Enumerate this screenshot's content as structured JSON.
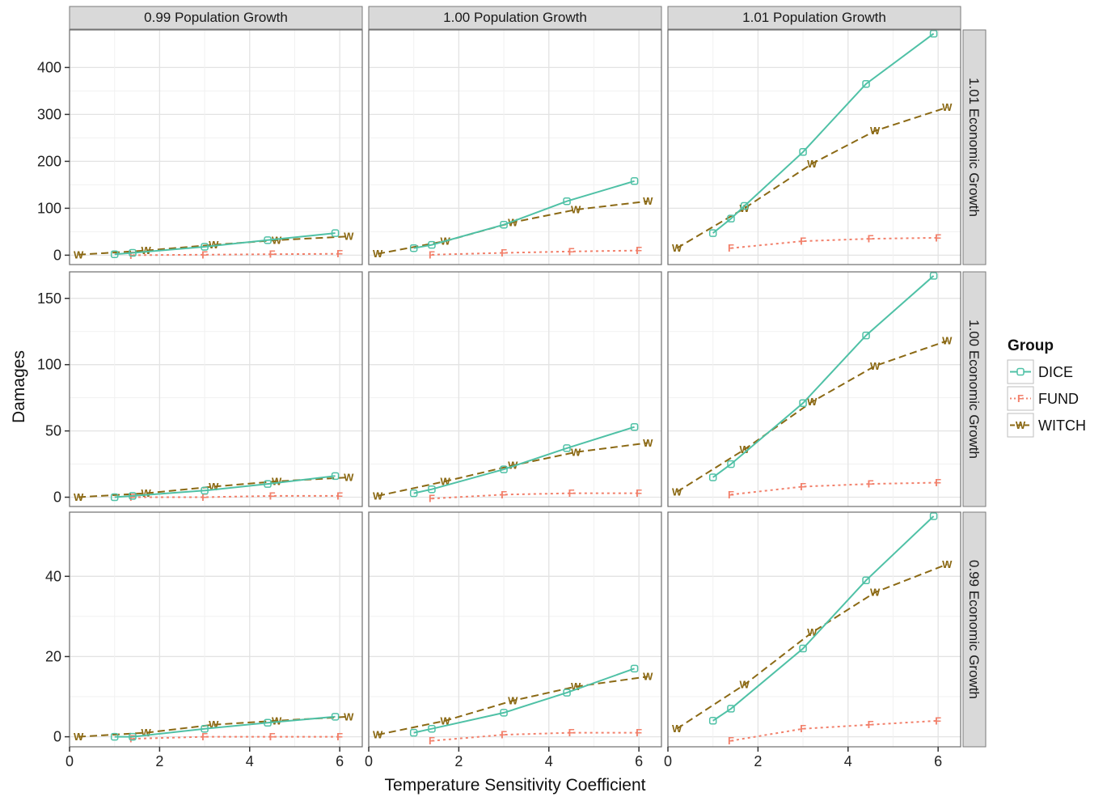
{
  "chart_data": {
    "type": "line",
    "title": "",
    "xlabel": "Temperature Sensitivity Coefficient",
    "ylabel": "Damages",
    "xlim": [
      0,
      6.5
    ],
    "x_ticks": [
      0,
      2,
      4,
      6
    ],
    "column_labels": [
      "0.99 Population Growth",
      "1.00 Population Growth",
      "1.01 Population Growth"
    ],
    "row_labels": [
      "1.01 Economic Growth",
      "1.00 Economic Growth",
      "0.99 Economic Growth"
    ],
    "row_ylim": [
      [
        -20,
        480
      ],
      [
        -7,
        170
      ],
      [
        -2.5,
        56
      ]
    ],
    "row_y_ticks": [
      [
        0,
        100,
        200,
        300,
        400
      ],
      [
        0,
        50,
        100,
        150
      ],
      [
        0,
        20,
        40
      ]
    ],
    "legend": {
      "title": "Group",
      "position": "right",
      "entries": [
        {
          "name": "DICE",
          "color": "#4fc1a6",
          "marker": "D",
          "dash": "solid"
        },
        {
          "name": "FUND",
          "color": "#f2806b",
          "marker": "F",
          "dash": "dotted"
        },
        {
          "name": "WITCH",
          "color": "#8b6914",
          "marker": "W",
          "dash": "dashed"
        }
      ]
    },
    "panels": [
      {
        "row": "1.01 Economic Growth",
        "column": "0.99 Population Growth",
        "series": [
          {
            "name": "DICE",
            "x": [
              1,
              1.4,
              3,
              4.4,
              5.9
            ],
            "y": [
              2,
              5,
              18,
              32,
              47
            ]
          },
          {
            "name": "FUND",
            "x": [
              1.4,
              3,
              4.5,
              6
            ],
            "y": [
              0,
              1,
              2,
              3
            ]
          },
          {
            "name": "WITCH",
            "x": [
              0.2,
              1.7,
              3.2,
              4.6,
              6.2
            ],
            "y": [
              1,
              10,
              22,
              32,
              40
            ]
          }
        ]
      },
      {
        "row": "1.01 Economic Growth",
        "column": "1.00 Population Growth",
        "series": [
          {
            "name": "DICE",
            "x": [
              1,
              1.4,
              3,
              4.4,
              5.9
            ],
            "y": [
              15,
              22,
              65,
              115,
              158
            ]
          },
          {
            "name": "FUND",
            "x": [
              1.4,
              3,
              4.5,
              6
            ],
            "y": [
              1,
              5,
              8,
              10
            ]
          },
          {
            "name": "WITCH",
            "x": [
              0.2,
              1.7,
              3.2,
              4.6,
              6.2
            ],
            "y": [
              3,
              30,
              70,
              97,
              115
            ]
          }
        ]
      },
      {
        "row": "1.01 Economic Growth",
        "column": "1.01 Population Growth",
        "series": [
          {
            "name": "DICE",
            "x": [
              1,
              1.4,
              1.7,
              3,
              4.4,
              5.9
            ],
            "y": [
              47,
              78,
              105,
              220,
              365,
              472
            ]
          },
          {
            "name": "FUND",
            "x": [
              1.4,
              3,
              4.5,
              6
            ],
            "y": [
              15,
              30,
              35,
              37
            ]
          },
          {
            "name": "WITCH",
            "x": [
              0.2,
              1.7,
              3.2,
              4.6,
              6.2
            ],
            "y": [
              15,
              100,
              195,
              265,
              315
            ]
          }
        ]
      },
      {
        "row": "1.00 Economic Growth",
        "column": "0.99 Population Growth",
        "series": [
          {
            "name": "DICE",
            "x": [
              1,
              1.4,
              3,
              4.4,
              5.9
            ],
            "y": [
              0,
              1,
              5,
              10,
              16
            ]
          },
          {
            "name": "FUND",
            "x": [
              1.4,
              3,
              4.5,
              6
            ],
            "y": [
              0,
              0,
              1,
              1
            ]
          },
          {
            "name": "WITCH",
            "x": [
              0.2,
              1.7,
              3.2,
              4.6,
              6.2
            ],
            "y": [
              0,
              3,
              8,
              12,
              15
            ]
          }
        ]
      },
      {
        "row": "1.00 Economic Growth",
        "column": "1.00 Population Growth",
        "series": [
          {
            "name": "DICE",
            "x": [
              1,
              1.4,
              3,
              4.4,
              5.9
            ],
            "y": [
              3,
              6,
              21,
              37,
              53
            ]
          },
          {
            "name": "FUND",
            "x": [
              1.4,
              3,
              4.5,
              6
            ],
            "y": [
              -1,
              2,
              3,
              3
            ]
          },
          {
            "name": "WITCH",
            "x": [
              0.2,
              1.7,
              3.2,
              4.6,
              6.2
            ],
            "y": [
              1,
              12,
              24,
              34,
              41
            ]
          }
        ]
      },
      {
        "row": "1.00 Economic Growth",
        "column": "1.01 Population Growth",
        "series": [
          {
            "name": "DICE",
            "x": [
              1,
              1.4,
              3,
              4.4,
              5.9
            ],
            "y": [
              15,
              25,
              71,
              122,
              167
            ]
          },
          {
            "name": "FUND",
            "x": [
              1.4,
              3,
              4.5,
              6
            ],
            "y": [
              2,
              8,
              10,
              11
            ]
          },
          {
            "name": "WITCH",
            "x": [
              0.2,
              1.7,
              3.2,
              4.6,
              6.2
            ],
            "y": [
              4,
              36,
              72,
              99,
              118
            ]
          }
        ]
      },
      {
        "row": "0.99 Economic Growth",
        "column": "0.99 Population Growth",
        "series": [
          {
            "name": "DICE",
            "x": [
              1,
              1.4,
              3,
              4.4,
              5.9
            ],
            "y": [
              0,
              0,
              2,
              3.5,
              5
            ]
          },
          {
            "name": "FUND",
            "x": [
              1.4,
              3,
              4.5,
              6
            ],
            "y": [
              -0.5,
              0,
              0,
              0
            ]
          },
          {
            "name": "WITCH",
            "x": [
              0.2,
              1.7,
              3.2,
              4.6,
              6.2
            ],
            "y": [
              0,
              1,
              3,
              4,
              5
            ]
          }
        ]
      },
      {
        "row": "0.99 Economic Growth",
        "column": "1.00 Population Growth",
        "series": [
          {
            "name": "DICE",
            "x": [
              1,
              1.4,
              3,
              4.4,
              5.9
            ],
            "y": [
              1,
              2,
              6,
              11,
              17
            ]
          },
          {
            "name": "FUND",
            "x": [
              1.4,
              3,
              4.5,
              6
            ],
            "y": [
              -1,
              0.5,
              1,
              1
            ]
          },
          {
            "name": "WITCH",
            "x": [
              0.2,
              1.7,
              3.2,
              4.6,
              6.2
            ],
            "y": [
              0.5,
              4,
              9,
              12.5,
              15
            ]
          }
        ]
      },
      {
        "row": "0.99 Economic Growth",
        "column": "1.01 Population Growth",
        "series": [
          {
            "name": "DICE",
            "x": [
              1,
              1.4,
              3,
              4.4,
              5.9
            ],
            "y": [
              4,
              7,
              22,
              39,
              55
            ]
          },
          {
            "name": "FUND",
            "x": [
              1.4,
              3,
              4.5,
              6
            ],
            "y": [
              -1,
              2,
              3,
              4
            ]
          },
          {
            "name": "WITCH",
            "x": [
              0.2,
              1.7,
              3.2,
              4.6,
              6.2
            ],
            "y": [
              2,
              13,
              26,
              36,
              43
            ]
          }
        ]
      }
    ]
  }
}
